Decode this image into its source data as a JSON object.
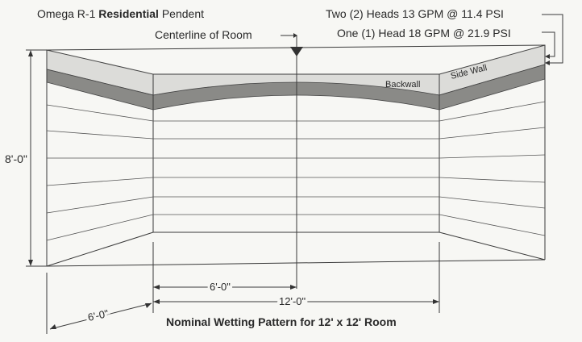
{
  "title": {
    "prefix": "Omega R-1 ",
    "bold": "Residential",
    "suffix": " Pendent"
  },
  "centerline_label": "Centerline of Room",
  "flow_notes": {
    "two_heads": "Two (2) Heads 13 GPM @ 11.4 PSI",
    "one_head": "One (1) Head 18 GPM @ 21.9 PSI"
  },
  "wall_labels": {
    "backwall": "Backwall",
    "side_wall": "Side Wall"
  },
  "dimensions": {
    "height": "8'-0\"",
    "half_width": "6'-0\"",
    "full_width": "12'-0\"",
    "depth": "6'-0\""
  },
  "caption": "Nominal Wetting Pattern for 12' x 12' Room",
  "colors": {
    "wetting_band_light": "#d9d9d6",
    "wetting_band_mid": "#a9a9a6",
    "wetting_band_dark": "#7d7d7a",
    "line": "#3a3a3a"
  }
}
